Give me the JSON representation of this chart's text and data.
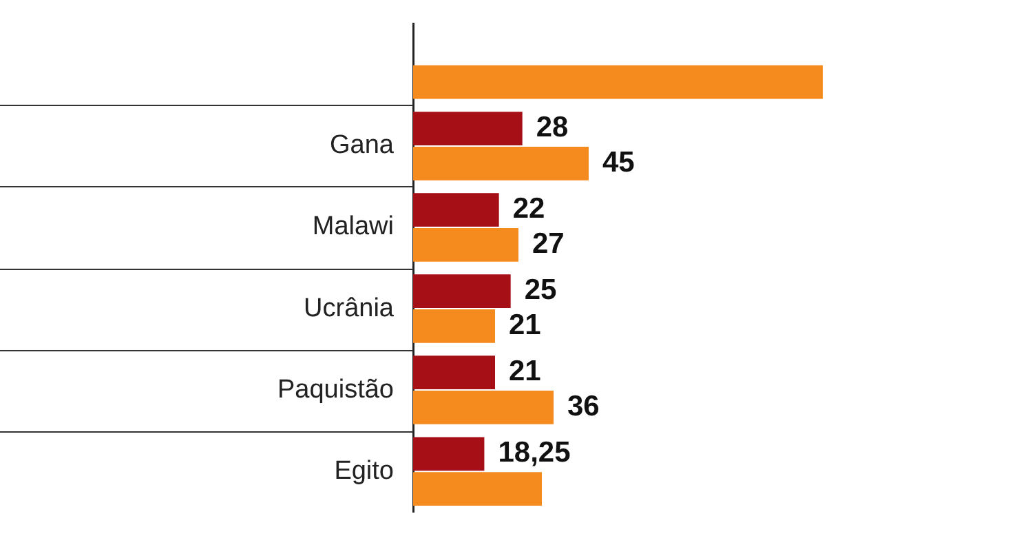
{
  "chart_data": {
    "type": "bar",
    "orientation": "horizontal",
    "categories": [
      null,
      "Gana",
      "Malawi",
      "Ucrânia",
      "Paquistão",
      "Egito"
    ],
    "series": [
      {
        "color": "#a50f15",
        "values": [
          null,
          28,
          22,
          25,
          21,
          18.25
        ],
        "value_labels": [
          null,
          "28",
          "22",
          "25",
          "21",
          "18,25"
        ]
      },
      {
        "color": "#f58a1f",
        "values": [
          105,
          45,
          27,
          21,
          36,
          33
        ],
        "value_labels": [
          null,
          "45",
          "27",
          "21",
          "36",
          null
        ]
      }
    ],
    "tick_labels": "y",
    "legend": false
  }
}
